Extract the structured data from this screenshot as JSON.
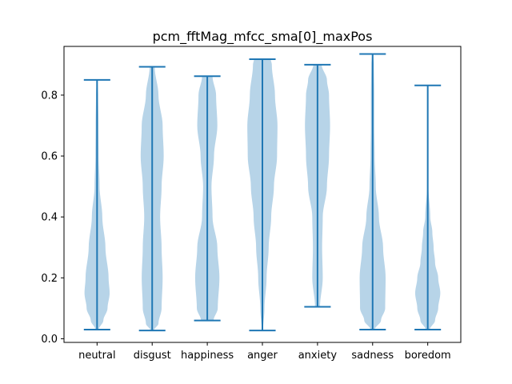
{
  "chart_data": {
    "type": "violin",
    "title": "pcm_fftMag_mfcc_sma[0]_maxPos",
    "xlabel": "",
    "ylabel": "",
    "ylim": [
      -0.012,
      0.96
    ],
    "yticks": [
      0.0,
      0.2,
      0.4,
      0.6,
      0.8
    ],
    "ytick_labels": [
      "0.0",
      "0.2",
      "0.4",
      "0.6",
      "0.8"
    ],
    "grid": false,
    "fill_color": "#b7d4e8",
    "line_color": "#1f77b4",
    "categories": [
      "neutral",
      "disgust",
      "happiness",
      "anger",
      "anxiety",
      "sadness",
      "boredom"
    ],
    "violins": [
      {
        "category": "neutral",
        "min": 0.03,
        "max": 0.85,
        "density": [
          [
            0.03,
            0.08
          ],
          [
            0.06,
            0.3
          ],
          [
            0.1,
            0.5
          ],
          [
            0.15,
            0.6
          ],
          [
            0.2,
            0.55
          ],
          [
            0.3,
            0.4
          ],
          [
            0.4,
            0.25
          ],
          [
            0.5,
            0.12
          ],
          [
            0.6,
            0.08
          ],
          [
            0.7,
            0.07
          ],
          [
            0.8,
            0.05
          ],
          [
            0.85,
            0.02
          ]
        ]
      },
      {
        "category": "disgust",
        "min": 0.027,
        "max": 0.893,
        "density": [
          [
            0.027,
            0.08
          ],
          [
            0.05,
            0.3
          ],
          [
            0.1,
            0.45
          ],
          [
            0.2,
            0.5
          ],
          [
            0.3,
            0.45
          ],
          [
            0.4,
            0.38
          ],
          [
            0.5,
            0.45
          ],
          [
            0.6,
            0.55
          ],
          [
            0.7,
            0.5
          ],
          [
            0.8,
            0.3
          ],
          [
            0.893,
            0.12
          ]
        ]
      },
      {
        "category": "happiness",
        "min": 0.06,
        "max": 0.862,
        "density": [
          [
            0.06,
            0.3
          ],
          [
            0.1,
            0.5
          ],
          [
            0.2,
            0.58
          ],
          [
            0.3,
            0.48
          ],
          [
            0.4,
            0.25
          ],
          [
            0.5,
            0.2
          ],
          [
            0.6,
            0.32
          ],
          [
            0.7,
            0.48
          ],
          [
            0.8,
            0.42
          ],
          [
            0.862,
            0.25
          ]
        ]
      },
      {
        "category": "anger",
        "min": 0.027,
        "max": 0.918,
        "density": [
          [
            0.027,
            0.03
          ],
          [
            0.1,
            0.1
          ],
          [
            0.2,
            0.2
          ],
          [
            0.3,
            0.3
          ],
          [
            0.4,
            0.42
          ],
          [
            0.5,
            0.55
          ],
          [
            0.6,
            0.7
          ],
          [
            0.7,
            0.72
          ],
          [
            0.8,
            0.6
          ],
          [
            0.9,
            0.45
          ],
          [
            0.918,
            0.4
          ]
        ]
      },
      {
        "category": "anxiety",
        "min": 0.105,
        "max": 0.9,
        "density": [
          [
            0.105,
            0.12
          ],
          [
            0.2,
            0.25
          ],
          [
            0.3,
            0.22
          ],
          [
            0.4,
            0.25
          ],
          [
            0.5,
            0.45
          ],
          [
            0.6,
            0.55
          ],
          [
            0.7,
            0.6
          ],
          [
            0.8,
            0.55
          ],
          [
            0.85,
            0.45
          ],
          [
            0.9,
            0.2
          ]
        ]
      },
      {
        "category": "sadness",
        "min": 0.03,
        "max": 0.935,
        "density": [
          [
            0.03,
            0.1
          ],
          [
            0.06,
            0.4
          ],
          [
            0.1,
            0.6
          ],
          [
            0.2,
            0.62
          ],
          [
            0.3,
            0.5
          ],
          [
            0.4,
            0.3
          ],
          [
            0.5,
            0.15
          ],
          [
            0.6,
            0.1
          ],
          [
            0.7,
            0.08
          ],
          [
            0.8,
            0.08
          ],
          [
            0.9,
            0.06
          ],
          [
            0.935,
            0.03
          ]
        ]
      },
      {
        "category": "boredom",
        "min": 0.03,
        "max": 0.832,
        "density": [
          [
            0.03,
            0.1
          ],
          [
            0.06,
            0.35
          ],
          [
            0.1,
            0.5
          ],
          [
            0.15,
            0.6
          ],
          [
            0.2,
            0.5
          ],
          [
            0.25,
            0.35
          ],
          [
            0.3,
            0.28
          ],
          [
            0.35,
            0.22
          ],
          [
            0.4,
            0.12
          ],
          [
            0.5,
            0.03
          ],
          [
            0.6,
            0.01
          ],
          [
            0.832,
            0.005
          ]
        ]
      }
    ]
  }
}
